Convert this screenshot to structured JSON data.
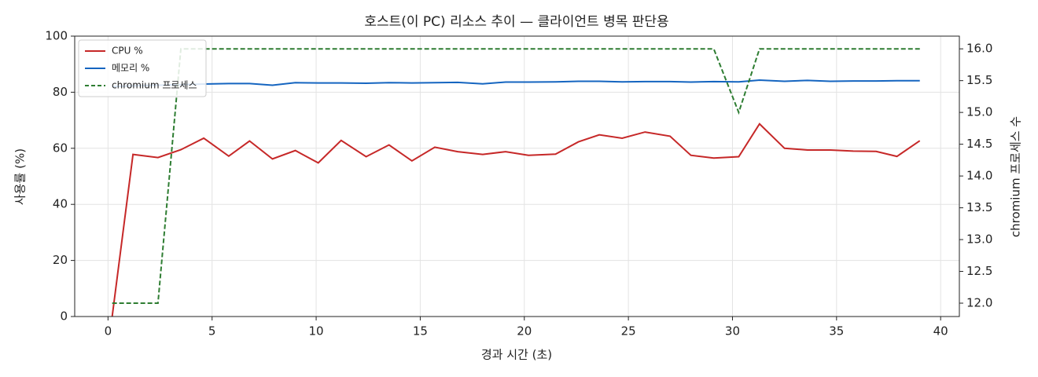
{
  "chart_data": {
    "type": "line",
    "title": "호스트(이 PC) 리소스 추이 — 클라이언트 병목 판단용",
    "x_label": "경과 시간 (초)",
    "y_label": "사용률 (%)",
    "y2_label": "chromium 프로세스 수",
    "x": [
      0.2,
      1.2,
      2.4,
      3.5,
      4.6,
      5.8,
      6.8,
      7.9,
      9.0,
      10.1,
      11.2,
      12.4,
      13.5,
      14.6,
      15.7,
      16.8,
      18.0,
      19.1,
      20.2,
      21.5,
      22.6,
      23.6,
      24.7,
      25.8,
      27.0,
      28.0,
      29.1,
      30.3,
      31.3,
      32.5,
      33.6,
      34.7,
      35.8,
      36.9,
      37.9,
      39.0
    ],
    "series": [
      {
        "name": "CPU %",
        "color": "#c62828",
        "style": "solid",
        "axis": "y",
        "values": [
          0,
          57.8,
          56.7,
          59.5,
          63.6,
          57.2,
          62.6,
          56.2,
          59.2,
          54.8,
          62.8,
          57.0,
          61.2,
          55.5,
          60.4,
          58.8,
          57.8,
          58.8,
          57.5,
          57.9,
          62.3,
          64.8,
          63.6,
          65.8,
          64.3,
          57.5,
          56.5,
          57.0,
          68.7,
          60.0,
          59.4,
          59.4,
          59.0,
          58.9,
          57.1,
          62.7
        ]
      },
      {
        "name": "메모리 %",
        "color": "#1565c0",
        "style": "solid",
        "axis": "y",
        "values": [
          82.0,
          82.3,
          82.5,
          82.7,
          82.9,
          83.1,
          83.1,
          82.5,
          83.4,
          83.3,
          83.3,
          83.2,
          83.4,
          83.3,
          83.4,
          83.5,
          83.0,
          83.6,
          83.6,
          83.7,
          83.9,
          83.9,
          83.7,
          83.8,
          83.8,
          83.6,
          83.8,
          83.7,
          84.3,
          83.9,
          84.2,
          83.9,
          84.0,
          84.0,
          84.1,
          84.1
        ]
      },
      {
        "name": "chromium 프로세스",
        "color": "#2e7d32",
        "style": "dashed",
        "axis": "y2",
        "values": [
          12,
          12,
          12,
          16,
          16,
          16,
          16,
          16,
          16,
          16,
          16,
          16,
          16,
          16,
          16,
          16,
          16,
          16,
          16,
          16,
          16,
          16,
          16,
          16,
          16,
          16,
          16,
          15,
          16,
          16,
          16,
          16,
          16,
          16,
          16,
          16
        ]
      }
    ],
    "xlim": [
      -1.6,
      40.9
    ],
    "xticks": [
      0,
      5,
      10,
      15,
      20,
      25,
      30,
      35,
      40
    ],
    "ylim": [
      0,
      100
    ],
    "yticks": [
      0,
      20,
      40,
      60,
      80,
      100
    ],
    "y2lim": [
      11.79,
      16.2
    ],
    "y2ticks": [
      {
        "value": 12,
        "label": "12.0"
      },
      {
        "value": 12.5,
        "label": "12.5"
      },
      {
        "value": 13,
        "label": "13.0"
      },
      {
        "value": 13.5,
        "label": "13.5"
      },
      {
        "value": 14,
        "label": "14.0"
      },
      {
        "value": 14.5,
        "label": "14.5"
      },
      {
        "value": 15,
        "label": "15.0"
      },
      {
        "value": 15.5,
        "label": "15.5"
      },
      {
        "value": 16,
        "label": "16.0"
      }
    ],
    "grid": true,
    "legend": "upper-left"
  }
}
